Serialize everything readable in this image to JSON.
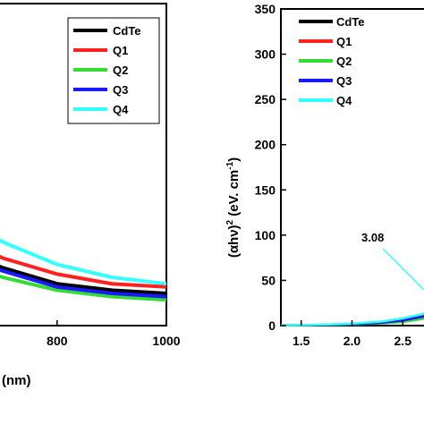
{
  "colors": {
    "CdTe": "#000000",
    "Q1": "#ff2020",
    "Q2": "#33dd33",
    "Q3": "#1a1aff",
    "Q4": "#33ffff"
  },
  "chart_data": [
    {
      "type": "line",
      "title": "",
      "xlabel": "(nm)",
      "ylabel": "",
      "xlim": [
        630,
        1000
      ],
      "ylim": [
        0,
        1
      ],
      "x_ticks": [
        800,
        1000
      ],
      "legend": {
        "position": "top-right",
        "entries": [
          "CdTe",
          "Q1",
          "Q2",
          "Q3",
          "Q4"
        ]
      },
      "series": [
        {
          "name": "CdTe",
          "x": [
            630,
            700,
            800,
            900,
            1000
          ],
          "y": [
            0.23,
            0.18,
            0.13,
            0.11,
            0.1
          ]
        },
        {
          "name": "Q1",
          "x": [
            630,
            700,
            800,
            900,
            1000
          ],
          "y": [
            0.27,
            0.21,
            0.16,
            0.13,
            0.12
          ]
        },
        {
          "name": "Q2",
          "x": [
            630,
            700,
            800,
            900,
            1000
          ],
          "y": [
            0.19,
            0.15,
            0.11,
            0.09,
            0.08
          ]
        },
        {
          "name": "Q3",
          "x": [
            630,
            700,
            800,
            900,
            1000
          ],
          "y": [
            0.21,
            0.17,
            0.12,
            0.1,
            0.09
          ]
        },
        {
          "name": "Q4",
          "x": [
            630,
            700,
            800,
            900,
            1000
          ],
          "y": [
            0.33,
            0.26,
            0.19,
            0.15,
            0.13
          ]
        }
      ]
    },
    {
      "type": "line",
      "title": "",
      "xlabel": "",
      "ylabel_main": "(αhν)",
      "ylabel_sup1": "2",
      "ylabel_units": " (eV. cm",
      "ylabel_sup2": "-1",
      "ylabel_close": ")",
      "ylim": [
        0,
        350
      ],
      "xlim": [
        1.3,
        2.85
      ],
      "y_ticks": [
        0,
        50,
        100,
        150,
        200,
        250,
        300,
        350
      ],
      "x_ticks": [
        1.5,
        2.0,
        2.5
      ],
      "x_tick_labels": [
        "1.5",
        "2.0",
        "2.5"
      ],
      "legend": {
        "position": "top-left",
        "entries": [
          "CdTe",
          "Q1",
          "Q2",
          "Q3",
          "Q4"
        ]
      },
      "annotation": {
        "text": "3.08"
      },
      "series": [
        {
          "name": "CdTe",
          "x": [
            1.3,
            1.7,
            2.0,
            2.3,
            2.5,
            2.7,
            2.85
          ],
          "y": [
            0.3,
            0.8,
            1.5,
            3.0,
            5.0,
            9.0,
            14.0
          ]
        },
        {
          "name": "Q1",
          "x": [
            1.3,
            1.7,
            2.0,
            2.3,
            2.5,
            2.7,
            2.85
          ],
          "y": [
            0.3,
            0.9,
            1.8,
            3.5,
            6.0,
            11.0,
            16.0
          ]
        },
        {
          "name": "Q2",
          "x": [
            1.3,
            1.7,
            2.0,
            2.3,
            2.5,
            2.7,
            2.85
          ],
          "y": [
            0.2,
            0.7,
            1.2,
            2.5,
            4.0,
            7.5,
            12.0
          ]
        },
        {
          "name": "Q3",
          "x": [
            1.3,
            1.7,
            2.0,
            2.3,
            2.5,
            2.7,
            2.85
          ],
          "y": [
            0.3,
            0.8,
            1.6,
            3.2,
            5.5,
            10.0,
            15.0
          ]
        },
        {
          "name": "Q4",
          "x": [
            1.3,
            1.7,
            2.0,
            2.3,
            2.5,
            2.7,
            2.85
          ],
          "y": [
            0.4,
            1.0,
            2.2,
            4.5,
            8.0,
            13.0,
            20.0
          ]
        }
      ]
    }
  ]
}
